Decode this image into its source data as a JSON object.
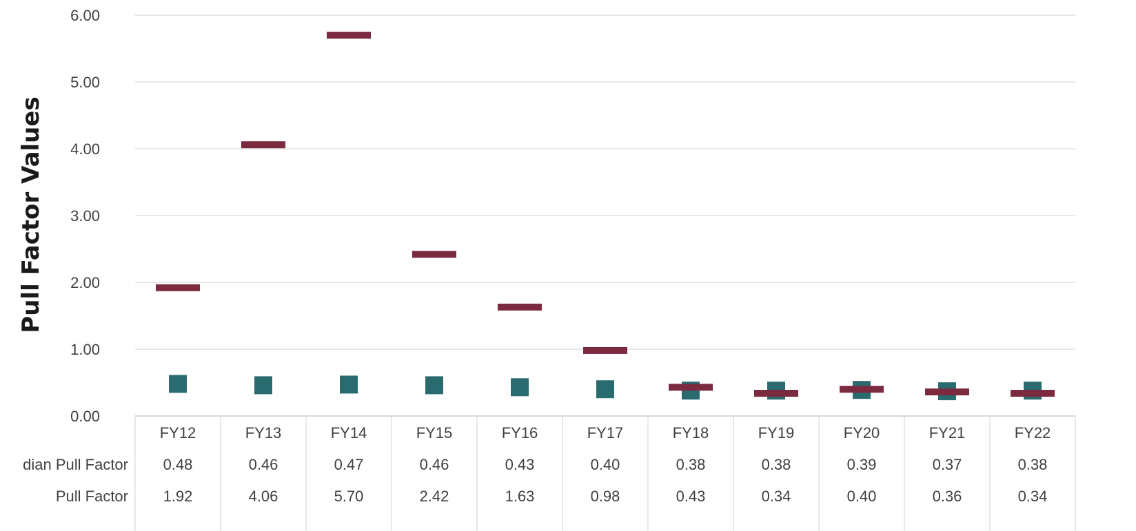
{
  "chart_data": {
    "type": "scatter",
    "ylabel": "Pull Factor Values",
    "ylim": [
      0,
      6
    ],
    "yticks": [
      "0.00",
      "1.00",
      "2.00",
      "3.00",
      "4.00",
      "5.00",
      "6.00"
    ],
    "grid": true,
    "categories": [
      "FY12",
      "FY13",
      "FY14",
      "FY15",
      "FY16",
      "FY17",
      "FY18",
      "FY19",
      "FY20",
      "FY21",
      "FY22"
    ],
    "series": [
      {
        "name": "dian Pull Factor",
        "marker": "square",
        "color": "#2a6b70",
        "values": [
          0.48,
          0.46,
          0.47,
          0.46,
          0.43,
          0.4,
          0.38,
          0.38,
          0.39,
          0.37,
          0.38
        ],
        "labels": [
          "0.48",
          "0.46",
          "0.47",
          "0.46",
          "0.43",
          "0.40",
          "0.38",
          "0.38",
          "0.39",
          "0.37",
          "0.38"
        ]
      },
      {
        "name": "Pull Factor",
        "marker": "dash",
        "color": "#7b2a40",
        "values": [
          1.92,
          4.06,
          5.7,
          2.42,
          1.63,
          0.98,
          0.43,
          0.34,
          0.4,
          0.36,
          0.34
        ],
        "labels": [
          "1.92",
          "4.06",
          "5.70",
          "2.42",
          "1.63",
          "0.98",
          "0.43",
          "0.34",
          "0.40",
          "0.36",
          "0.34"
        ]
      }
    ]
  }
}
